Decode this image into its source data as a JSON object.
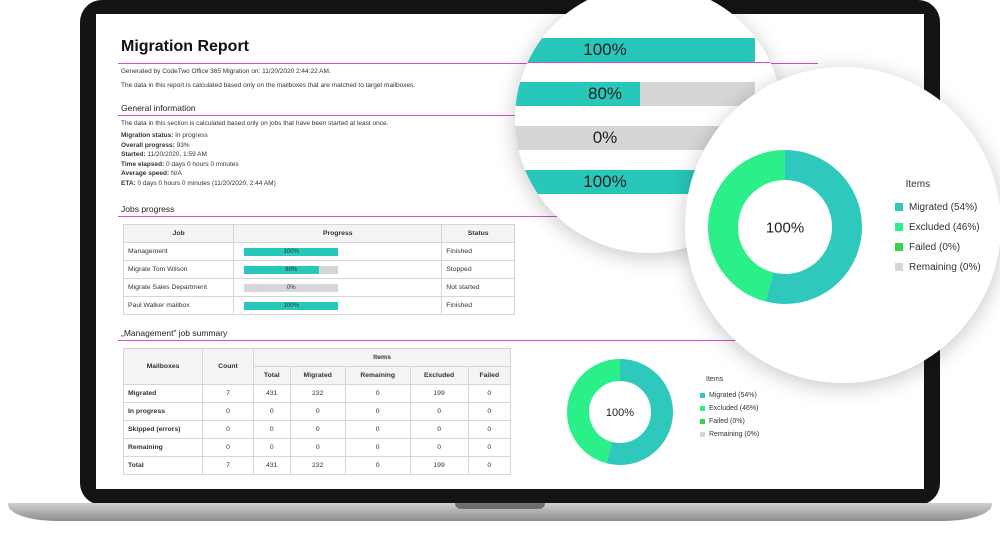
{
  "report": {
    "title": "Migration Report",
    "generated": "Generated by CodeTwo Office 365 Migration on: 11/20/2020 2:44:22 AM.",
    "note": "The data in this report is calculated based only on the mailboxes that are matched to target mailboxes.",
    "general": {
      "heading": "General information",
      "note": "The data in this section is calculated based only on jobs that have been started at least once.",
      "lines": [
        {
          "label": "Migration status:",
          "value": " In progress"
        },
        {
          "label": "Overall progress:",
          "value": " 93%"
        },
        {
          "label": "Started:",
          "value": " 11/20/2020, 1:59 AM"
        },
        {
          "label": "Time elapsed:",
          "value": " 0 days 0 hours 0 minutes"
        },
        {
          "label": "Average speed:",
          "value": " N/A"
        },
        {
          "label": "ETA:",
          "value": " 0 days 0 hours 0 minutes (11/20/2020, 2:44 AM)"
        }
      ]
    },
    "jobs": {
      "heading": "Jobs progress",
      "columns": [
        "Job",
        "Progress",
        "Status"
      ],
      "rows": [
        {
          "job": "Management",
          "progress": 100,
          "label": "100%",
          "status": "Finished"
        },
        {
          "job": "Migrate Tom Wilson",
          "progress": 80,
          "label": "80%",
          "status": "Stopped"
        },
        {
          "job": "Migrate Sales Department",
          "progress": 0,
          "label": "0%",
          "status": "Not started"
        },
        {
          "job": "Paul Walker mailbox",
          "progress": 100,
          "label": "100%",
          "status": "Finished"
        }
      ]
    },
    "summary": {
      "heading": "„Management” job summary",
      "col_mailboxes": "Mailboxes",
      "col_count": "Count",
      "col_items": "Items",
      "item_cols": [
        "Total",
        "Migrated",
        "Remaining",
        "Excluded",
        "Failed"
      ],
      "rows": [
        {
          "name": "Migrated",
          "cells": [
            "7",
            "431",
            "232",
            "0",
            "199",
            "0"
          ]
        },
        {
          "name": "In progress",
          "cells": [
            "0",
            "0",
            "0",
            "0",
            "0",
            "0"
          ]
        },
        {
          "name": "Skipped (errors)",
          "cells": [
            "0",
            "0",
            "0",
            "0",
            "0",
            "0"
          ]
        },
        {
          "name": "Remaining",
          "cells": [
            "0",
            "0",
            "0",
            "0",
            "0",
            "0"
          ]
        },
        {
          "name": "Total",
          "cells": [
            "7",
            "431",
            "232",
            "0",
            "199",
            "0"
          ]
        }
      ]
    }
  },
  "donut": {
    "center_label": "100%",
    "legend_title": "Items",
    "items": [
      {
        "label": "Migrated (54%)",
        "value": 54,
        "color": "#2ec8bc"
      },
      {
        "label": "Excluded (46%)",
        "value": 46,
        "color": "#2bf08a"
      },
      {
        "label": "Failed (0%)",
        "value": 0,
        "color": "#35d64a"
      },
      {
        "label": "Remaining (0%)",
        "value": 0,
        "color": "#d6d6d6"
      }
    ]
  },
  "zoom_bars": [
    {
      "value": 100,
      "label": "100%"
    },
    {
      "value": 80,
      "label": "80%"
    },
    {
      "value": 0,
      "label": "0%"
    },
    {
      "value": 100,
      "label": "100%"
    }
  ],
  "colors": {
    "accent_rule": "#d34fc4",
    "progress": "#27c7b9",
    "track": "#d6d6d6"
  }
}
